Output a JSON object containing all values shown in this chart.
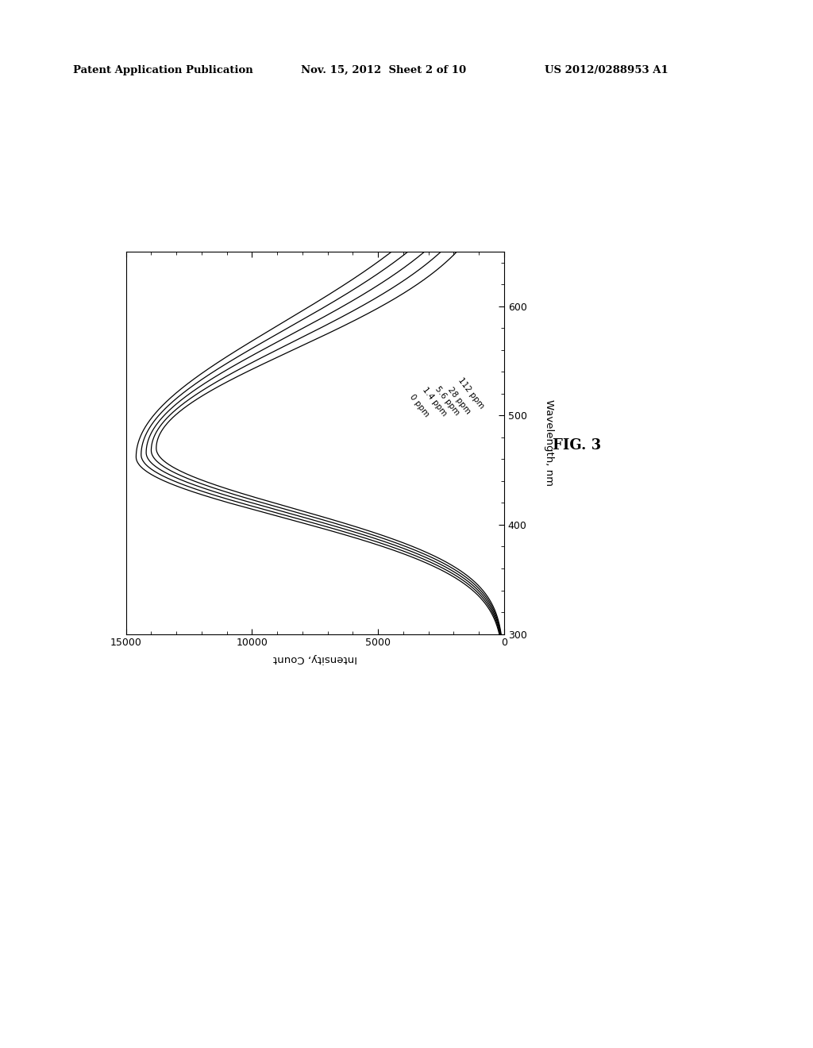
{
  "title": "FIG. 3",
  "patent_header_left": "Patent Application Publication",
  "patent_header_mid": "Nov. 15, 2012  Sheet 2 of 10",
  "patent_header_right": "US 2012/0288953 A1",
  "xlabel": "Intensity, Count",
  "ylabel": "Wavelength, nm",
  "xlim": [
    15000,
    0
  ],
  "ylim": [
    300,
    650
  ],
  "x_ticks": [
    15000,
    10000,
    5000,
    0
  ],
  "y_ticks": [
    300,
    400,
    500,
    600
  ],
  "legend_labels": [
    "0 ppm",
    "1.4 ppm",
    "5.6 ppm",
    "28 ppm",
    "112 ppm"
  ],
  "line_color": "#000000",
  "background_color": "#ffffff",
  "isosbestic_wavelength": 470,
  "isosbestic_intensity": 13800,
  "peak_wavelength": 470,
  "emission_wavelength": 630,
  "excitation_wavelength": 310
}
